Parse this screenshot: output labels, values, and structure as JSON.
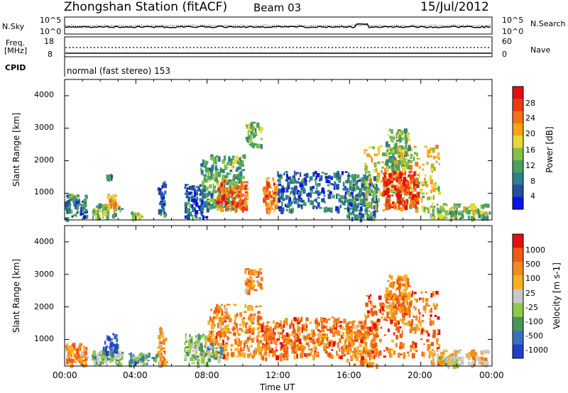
{
  "header": {
    "station": "Zhongshan Station (fitACF)",
    "beam": "Beam 03",
    "date": "15/Jul/2012",
    "cpid_text": "normal (fast stereo) 153"
  },
  "status_panels": {
    "nsky_label": "N.Sky",
    "nsky_scale_top": "10^5",
    "nsky_scale_bottom": "10^0",
    "nsearch_label": "N.Search",
    "nsearch_scale_top": "10^5",
    "nsearch_scale_bottom": "10^0",
    "freq_label": "Freq.",
    "freq_unit": "[MHz]",
    "freq_ticks": [
      "18",
      "8"
    ],
    "nave_label": "Nave",
    "nave_ticks": [
      "60",
      "0"
    ],
    "cpid_label": "CPID"
  },
  "chart_data": [
    {
      "type": "heatmap",
      "name": "power",
      "ylabel": "Slant Range [km]",
      "yticks": [
        "4000",
        "3000",
        "2000",
        "1000"
      ],
      "ylim": [
        180,
        4500
      ],
      "xlim": [
        0,
        24
      ],
      "colorbar": {
        "label": "Power [dB]",
        "ticks": [
          "28",
          "24",
          "20",
          "16",
          "12",
          "8",
          "4"
        ],
        "colors": [
          "#0a14e6",
          "#244fa3",
          "#2f7e8c",
          "#4aa05c",
          "#86c046",
          "#e8d834",
          "#f7a018",
          "#f47216",
          "#ea3c12",
          "#e01010"
        ]
      },
      "clusters": [
        {
          "t0": 0.0,
          "t1": 1.2,
          "r0": 250,
          "r1": 1000,
          "level": 0.25
        },
        {
          "t0": 1.5,
          "t1": 3.2,
          "r0": 300,
          "r1": 700,
          "level": 0.45
        },
        {
          "t0": 2.2,
          "t1": 2.8,
          "r0": 650,
          "r1": 1000,
          "level": 0.6
        },
        {
          "t0": 2.3,
          "t1": 2.6,
          "r0": 1350,
          "r1": 1600,
          "level": 0.3
        },
        {
          "t0": 3.7,
          "t1": 4.3,
          "r0": 280,
          "r1": 450,
          "level": 0.4
        },
        {
          "t0": 5.2,
          "t1": 5.6,
          "r0": 300,
          "r1": 1400,
          "level": 0.25
        },
        {
          "t0": 6.7,
          "t1": 8.0,
          "r0": 250,
          "r1": 1300,
          "level": 0.2
        },
        {
          "t0": 7.6,
          "t1": 10.0,
          "r0": 600,
          "r1": 2200,
          "level": 0.35
        },
        {
          "t0": 8.5,
          "t1": 10.2,
          "r0": 500,
          "r1": 1400,
          "level": 0.8
        },
        {
          "t0": 10.1,
          "t1": 11.0,
          "r0": 2500,
          "r1": 3200,
          "level": 0.4
        },
        {
          "t0": 11.1,
          "t1": 11.9,
          "r0": 500,
          "r1": 1500,
          "level": 0.75
        },
        {
          "t0": 11.9,
          "t1": 16.0,
          "r0": 500,
          "r1": 1700,
          "level": 0.2
        },
        {
          "t0": 15.8,
          "t1": 17.5,
          "r0": 250,
          "r1": 1600,
          "level": 0.25
        },
        {
          "t0": 16.8,
          "t1": 21.0,
          "r0": 500,
          "r1": 2500,
          "level": 0.55
        },
        {
          "t0": 17.8,
          "t1": 19.8,
          "r0": 600,
          "r1": 1700,
          "level": 0.85
        },
        {
          "t0": 18.0,
          "t1": 19.3,
          "r0": 1800,
          "r1": 3000,
          "level": 0.4
        },
        {
          "t0": 20.5,
          "t1": 23.9,
          "r0": 250,
          "r1": 700,
          "level": 0.45
        }
      ]
    },
    {
      "type": "heatmap",
      "name": "velocity",
      "ylabel": "Slant Range [km]",
      "yticks": [
        "4000",
        "3000",
        "2000",
        "1000"
      ],
      "ylim": [
        180,
        4500
      ],
      "xlim": [
        0,
        24
      ],
      "xticks": [
        "00:00",
        "04:00",
        "08:00",
        "12:00",
        "16:00",
        "20:00",
        "00:00"
      ],
      "xlabel": "Time UT",
      "colorbar": {
        "label": "Velocity [m s-1]",
        "ticks": [
          "1000",
          "500",
          "100",
          "25",
          "-25",
          "-100",
          "-500",
          "-1000"
        ],
        "colors": [
          "#2440c8",
          "#3b6ec0",
          "#4a9658",
          "#8ccb46",
          "#c8c8c8",
          "#f7b022",
          "#f38a1a",
          "#ee5c14",
          "#e01010"
        ]
      },
      "clusters": [
        {
          "t0": 0.0,
          "t1": 1.2,
          "r0": 250,
          "r1": 900,
          "level": 0.7
        },
        {
          "t0": 1.5,
          "t1": 3.2,
          "r0": 250,
          "r1": 700,
          "level": 0.35
        },
        {
          "t0": 2.1,
          "t1": 2.9,
          "r0": 600,
          "r1": 1200,
          "level": 0.1
        },
        {
          "t0": 3.5,
          "t1": 5.3,
          "r0": 250,
          "r1": 600,
          "level": 0.3
        },
        {
          "t0": 5.2,
          "t1": 5.6,
          "r0": 250,
          "r1": 1400,
          "level": 0.7
        },
        {
          "t0": 6.7,
          "t1": 8.0,
          "r0": 250,
          "r1": 1200,
          "level": 0.4
        },
        {
          "t0": 8.0,
          "t1": 11.0,
          "r0": 500,
          "r1": 2100,
          "level": 0.72
        },
        {
          "t0": 8.0,
          "t1": 8.8,
          "r0": 400,
          "r1": 900,
          "level": 0.35
        },
        {
          "t0": 10.1,
          "t1": 11.0,
          "r0": 2500,
          "r1": 3200,
          "level": 0.7
        },
        {
          "t0": 11.0,
          "t1": 12.3,
          "r0": 450,
          "r1": 1600,
          "level": 0.8
        },
        {
          "t0": 12.2,
          "t1": 16.0,
          "r0": 500,
          "r1": 1700,
          "level": 0.75
        },
        {
          "t0": 15.8,
          "t1": 17.5,
          "r0": 250,
          "r1": 1600,
          "level": 0.72
        },
        {
          "t0": 16.8,
          "t1": 21.0,
          "r0": 500,
          "r1": 2500,
          "level": 0.78
        },
        {
          "t0": 18.0,
          "t1": 19.3,
          "r0": 1800,
          "r1": 3000,
          "level": 0.72
        },
        {
          "t0": 20.5,
          "t1": 23.9,
          "r0": 250,
          "r1": 700,
          "level": 0.62
        },
        {
          "t0": 21.0,
          "t1": 22.0,
          "r0": 250,
          "r1": 500,
          "level": 0.45
        }
      ]
    }
  ]
}
